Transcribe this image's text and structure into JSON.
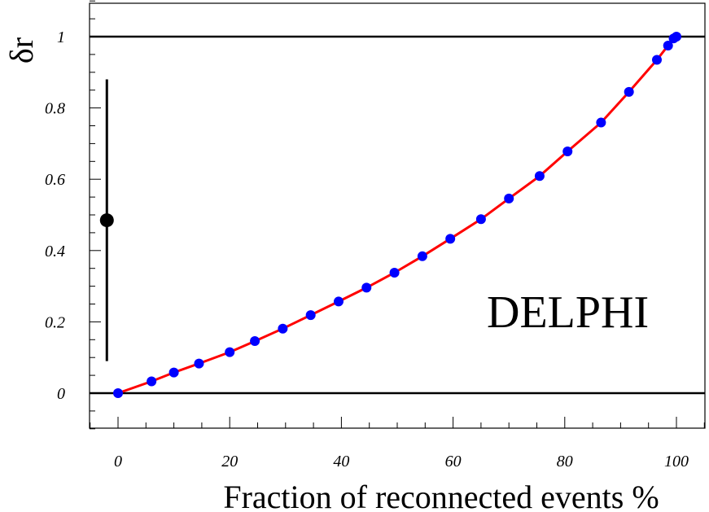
{
  "chart_data": {
    "type": "scatter",
    "title": "",
    "xlabel": "Fraction of reconnected events %",
    "ylabel": "δr",
    "xlim": [
      -5,
      105
    ],
    "ylim": [
      -0.1,
      1.1
    ],
    "x_ticks": [
      0,
      20,
      40,
      60,
      80,
      100
    ],
    "x_tick_labels": [
      "0",
      "20",
      "40",
      "60",
      "80",
      "100"
    ],
    "y_ticks": [
      0,
      0.2,
      0.4,
      0.6,
      0.8,
      1
    ],
    "y_tick_labels": [
      "0",
      "0.2",
      "0.4",
      "0.6",
      "0.8",
      "1"
    ],
    "reference_lines_y": [
      0,
      1
    ],
    "grid": false,
    "annotation": "DELPHI",
    "series": [
      {
        "kind": "points",
        "color": "#0000ff",
        "points": [
          [
            0,
            0
          ],
          [
            6,
            0.033
          ],
          [
            10,
            0.058
          ],
          [
            14.5,
            0.083
          ],
          [
            20,
            0.115
          ],
          [
            24.5,
            0.146
          ],
          [
            29.5,
            0.181
          ],
          [
            34.5,
            0.219
          ],
          [
            39.5,
            0.257
          ],
          [
            44.5,
            0.296
          ],
          [
            49.5,
            0.338
          ],
          [
            54.5,
            0.384
          ],
          [
            59.5,
            0.433
          ],
          [
            65,
            0.488
          ],
          [
            70,
            0.546
          ],
          [
            75.5,
            0.609
          ],
          [
            80.5,
            0.678
          ],
          [
            86.5,
            0.759
          ],
          [
            91.5,
            0.845
          ],
          [
            96.5,
            0.935
          ],
          [
            98.5,
            0.975
          ],
          [
            99.5,
            0.995
          ],
          [
            100,
            1.0
          ]
        ]
      },
      {
        "kind": "curve",
        "color": "#ff0000",
        "points": [
          [
            0,
            0
          ],
          [
            6,
            0.033
          ],
          [
            10,
            0.058
          ],
          [
            14.5,
            0.083
          ],
          [
            20,
            0.115
          ],
          [
            24.5,
            0.146
          ],
          [
            29.5,
            0.181
          ],
          [
            34.5,
            0.219
          ],
          [
            39.5,
            0.257
          ],
          [
            44.5,
            0.296
          ],
          [
            49.5,
            0.338
          ],
          [
            54.5,
            0.384
          ],
          [
            59.5,
            0.433
          ],
          [
            65,
            0.488
          ],
          [
            70,
            0.546
          ],
          [
            75.5,
            0.609
          ],
          [
            80.5,
            0.678
          ],
          [
            86.5,
            0.759
          ],
          [
            91.5,
            0.845
          ],
          [
            96.5,
            0.935
          ],
          [
            98.5,
            0.975
          ],
          [
            99.5,
            0.995
          ],
          [
            100,
            1.0
          ]
        ]
      },
      {
        "kind": "measurement",
        "color": "#000000",
        "x": -2,
        "y": 0.485,
        "y_low": 0.09,
        "y_high": 0.88
      }
    ]
  }
}
